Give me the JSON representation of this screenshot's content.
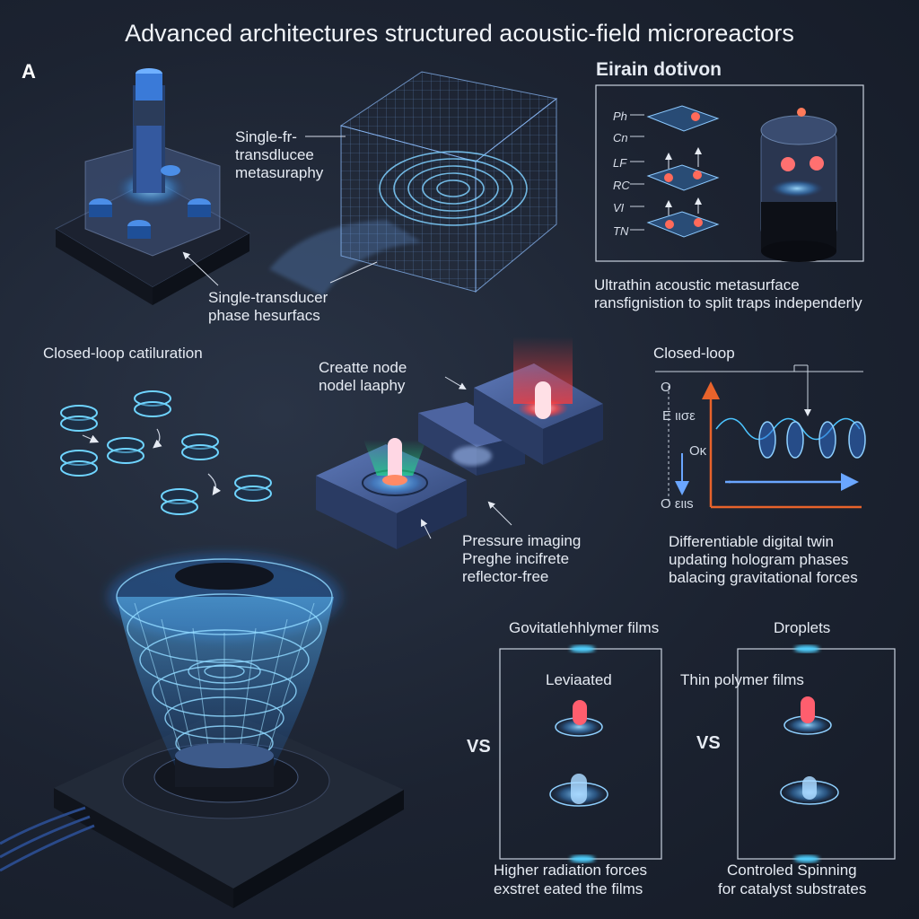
{
  "title": "Advanced architectures structured acoustic-field microreactors",
  "panel_label": "A",
  "top_left": {
    "label_a_lines": [
      "Single-fr-",
      "transdlucee",
      "metasuraphy"
    ],
    "label_b_lines": [
      "Single-transducer",
      "phase hesurfacs"
    ]
  },
  "top_right": {
    "heading": "Eirain dotivon",
    "row_labels": [
      "Ph",
      "Cn",
      "LF",
      "RC",
      "VI",
      "TN"
    ],
    "caption_lines": [
      "Ultrathin acoustic metasurface",
      "ransfignistion to split traps independerly"
    ]
  },
  "mid_left": {
    "heading": "Closed-loop catiluration"
  },
  "mid_center": {
    "label_a_lines": [
      "Creatte node",
      "nodel laaphy"
    ],
    "label_b_lines": [
      "Pressure imaging",
      "Preghe incifrete",
      "reflector-free"
    ]
  },
  "mid_right": {
    "heading": "Closed-loop",
    "axis_labels": [
      "O",
      "E ιισε",
      "Oκ",
      "O ειιs"
    ],
    "caption_lines": [
      "Differentiable digital twin",
      "updating hologram phases",
      "balacing gravitational forces"
    ]
  },
  "bottom_right": {
    "left_top": "Govitatlehhlymer films",
    "left_sub": "Leviaated",
    "left_vs": "VS",
    "left_caption_lines": [
      "Higher radiation forces",
      "exstret eated the films"
    ],
    "right_top": "Droplets",
    "right_sub": "Thin polymer films",
    "right_vs": "VS",
    "right_caption_lines": [
      "Controled Spinning",
      "for catalyst substrates"
    ]
  },
  "colors": {
    "background": "#1b2230",
    "accent_blue": "#4fb4ff",
    "glow_red": "#ff4a4a",
    "axis_orange": "#e8632b"
  }
}
